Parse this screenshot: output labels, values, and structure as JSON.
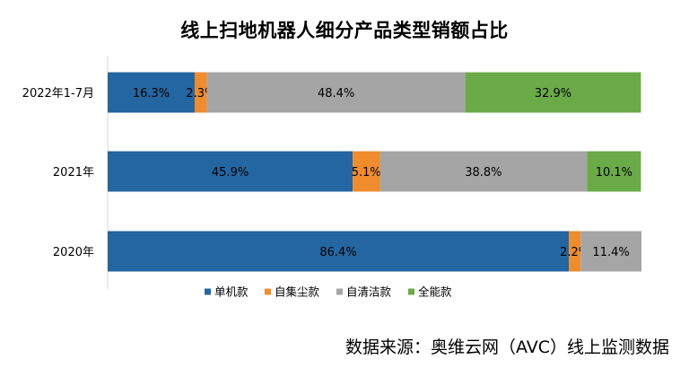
{
  "chart_data": {
    "type": "bar",
    "orientation": "horizontal",
    "stacked": true,
    "percent_stacked": true,
    "title": "线上扫地机器人细分产品类型销额占比",
    "source": "数据来源：奥维云网（AVC）线上监测数据",
    "categories": [
      "2022年1-7月",
      "2021年",
      "2020年"
    ],
    "series": [
      {
        "name": "单机款",
        "color": "#2366a1",
        "values": [
          16.3,
          45.9,
          86.4
        ],
        "labels": [
          "16.3%",
          "45.9%",
          "86.4%"
        ]
      },
      {
        "name": "自集尘款",
        "color": "#f08c2c",
        "values": [
          2.3,
          5.1,
          2.2
        ],
        "labels": [
          "2.3%",
          "5.1%",
          "2.2%"
        ]
      },
      {
        "name": "自清洁款",
        "color": "#a5a5a5",
        "values": [
          48.4,
          38.8,
          11.4
        ],
        "labels": [
          "48.4%",
          "38.8%",
          "11.4%"
        ]
      },
      {
        "name": "全能款",
        "color": "#6aab47",
        "values": [
          32.9,
          10.1,
          0
        ],
        "labels": [
          "32.9%",
          "10.1%",
          ""
        ]
      }
    ],
    "xlim": [
      0,
      100
    ],
    "legend_position": "bottom",
    "grid": false
  }
}
